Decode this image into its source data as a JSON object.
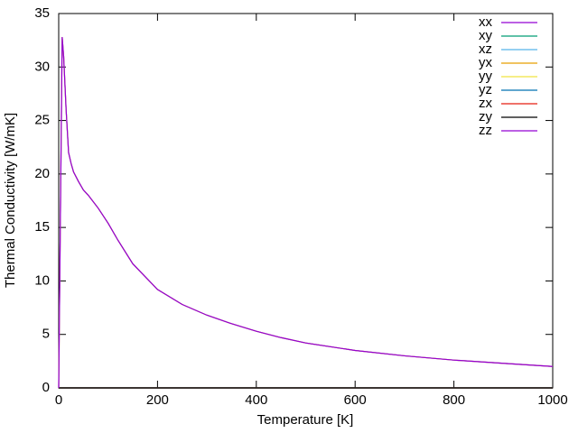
{
  "chart_data": {
    "type": "line",
    "xlabel": "Temperature [K]",
    "ylabel": "Thermal Conductivity [W/mK]",
    "x": [
      0,
      3,
      7,
      10,
      15,
      20,
      25,
      30,
      40,
      50,
      60,
      80,
      100,
      120,
      150,
      200,
      250,
      300,
      350,
      400,
      450,
      500,
      600,
      700,
      800,
      900,
      1000
    ],
    "series": [
      {
        "name": "xx",
        "color": "#9400d3",
        "values": [
          0,
          14,
          32.8,
          31,
          26,
          22,
          21,
          20.2,
          19.3,
          18.5,
          18,
          16.8,
          15.4,
          13.8,
          11.6,
          9.2,
          7.8,
          6.8,
          6,
          5.3,
          4.7,
          4.2,
          3.5,
          3.0,
          2.6,
          2.3,
          2.0
        ]
      },
      {
        "name": "xy",
        "color": "#009e73",
        "values": [
          0,
          0,
          0,
          0,
          0,
          0,
          0,
          0,
          0,
          0,
          0,
          0,
          0,
          0,
          0,
          0,
          0,
          0,
          0,
          0,
          0,
          0,
          0,
          0,
          0,
          0,
          0
        ]
      },
      {
        "name": "xz",
        "color": "#56b4e9",
        "values": [
          0,
          0,
          0,
          0,
          0,
          0,
          0,
          0,
          0,
          0,
          0,
          0,
          0,
          0,
          0,
          0,
          0,
          0,
          0,
          0,
          0,
          0,
          0,
          0,
          0,
          0,
          0
        ]
      },
      {
        "name": "yx",
        "color": "#e69f00",
        "values": [
          0,
          0,
          0,
          0,
          0,
          0,
          0,
          0,
          0,
          0,
          0,
          0,
          0,
          0,
          0,
          0,
          0,
          0,
          0,
          0,
          0,
          0,
          0,
          0,
          0,
          0,
          0
        ]
      },
      {
        "name": "yy",
        "color": "#f0e442",
        "values": [
          0,
          14,
          32.8,
          31,
          26,
          22,
          21,
          20.2,
          19.3,
          18.5,
          18,
          16.8,
          15.4,
          13.8,
          11.6,
          9.2,
          7.8,
          6.8,
          6,
          5.3,
          4.7,
          4.2,
          3.5,
          3.0,
          2.6,
          2.3,
          2.0
        ]
      },
      {
        "name": "yz",
        "color": "#0072b2",
        "values": [
          0,
          0,
          0,
          0,
          0,
          0,
          0,
          0,
          0,
          0,
          0,
          0,
          0,
          0,
          0,
          0,
          0,
          0,
          0,
          0,
          0,
          0,
          0,
          0,
          0,
          0,
          0
        ]
      },
      {
        "name": "zx",
        "color": "#e51e10",
        "values": [
          0,
          0,
          0,
          0,
          0,
          0,
          0,
          0,
          0,
          0,
          0,
          0,
          0,
          0,
          0,
          0,
          0,
          0,
          0,
          0,
          0,
          0,
          0,
          0,
          0,
          0,
          0
        ]
      },
      {
        "name": "zy",
        "color": "#000000",
        "values": [
          0,
          0,
          0,
          0,
          0,
          0,
          0,
          0,
          0,
          0,
          0,
          0,
          0,
          0,
          0,
          0,
          0,
          0,
          0,
          0,
          0,
          0,
          0,
          0,
          0,
          0,
          0
        ]
      },
      {
        "name": "zz",
        "color": "#9400d3",
        "values": [
          0,
          14,
          32.8,
          31,
          26,
          22,
          21,
          20.2,
          19.3,
          18.5,
          18,
          16.8,
          15.4,
          13.8,
          11.6,
          9.2,
          7.8,
          6.8,
          6,
          5.3,
          4.7,
          4.2,
          3.5,
          3.0,
          2.6,
          2.3,
          2.0
        ]
      }
    ],
    "xlim": [
      0,
      1000
    ],
    "xticks": [
      0,
      200,
      400,
      600,
      800,
      1000
    ],
    "ylim": [
      0,
      35
    ],
    "yticks": [
      0,
      5,
      10,
      15,
      20,
      25,
      30,
      35
    ],
    "grid": false,
    "legend": "top-right"
  }
}
